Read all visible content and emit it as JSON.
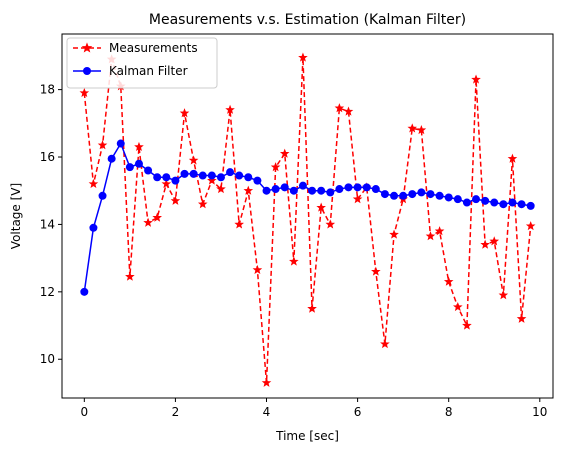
{
  "chart_data": {
    "type": "line",
    "title": "Measurements v.s. Estimation (Kalman Filter)",
    "xlabel": "Time [sec]",
    "ylabel": "Voltage [V]",
    "xlim": [
      -0.49,
      10.29
    ],
    "ylim": [
      8.85,
      19.65
    ],
    "xticks": [
      0,
      2,
      4,
      6,
      8,
      10
    ],
    "yticks": [
      10,
      12,
      14,
      16,
      18
    ],
    "xtick_labels": [
      "0",
      "2",
      "4",
      "6",
      "8",
      "10"
    ],
    "ytick_labels": [
      "10",
      "12",
      "14",
      "16",
      "18"
    ],
    "grid": false,
    "legend_position": "upper-left",
    "x": [
      0,
      0.2,
      0.4,
      0.6,
      0.8,
      1.0,
      1.2,
      1.4,
      1.6,
      1.8,
      2.0,
      2.2,
      2.4,
      2.6,
      2.8,
      3.0,
      3.2,
      3.4,
      3.6,
      3.8,
      4.0,
      4.2,
      4.4,
      4.6,
      4.8,
      5.0,
      5.2,
      5.4,
      5.6,
      5.8,
      6.0,
      6.2,
      6.4,
      6.6,
      6.8,
      7.0,
      7.2,
      7.4,
      7.6,
      7.8,
      8.0,
      8.2,
      8.4,
      8.6,
      8.8,
      9.0,
      9.2,
      9.4,
      9.6,
      9.8
    ],
    "series": [
      {
        "name": "Measurements",
        "color": "#ff0000",
        "linestyle": "dashed",
        "marker": "star",
        "values": [
          17.9,
          15.2,
          16.35,
          18.9,
          18.1,
          12.45,
          16.3,
          14.05,
          14.2,
          15.2,
          14.7,
          17.3,
          15.9,
          14.6,
          15.3,
          15.05,
          17.4,
          14.0,
          15.0,
          12.65,
          9.3,
          15.7,
          16.1,
          12.9,
          18.95,
          11.5,
          14.5,
          14.0,
          17.45,
          17.35,
          14.75,
          15.1,
          12.6,
          10.45,
          13.7,
          14.75,
          16.85,
          16.8,
          13.65,
          13.8,
          12.3,
          11.55,
          11.0,
          18.3,
          13.4,
          13.5,
          11.9,
          15.95,
          11.2,
          13.95
        ]
      },
      {
        "name": "Kalman Filter",
        "color": "#0000ff",
        "linestyle": "solid",
        "marker": "circle",
        "values": [
          12.0,
          13.9,
          14.85,
          15.95,
          16.4,
          15.7,
          15.8,
          15.6,
          15.4,
          15.4,
          15.3,
          15.5,
          15.5,
          15.45,
          15.45,
          15.4,
          15.55,
          15.45,
          15.4,
          15.3,
          15.0,
          15.05,
          15.1,
          15.0,
          15.15,
          15.0,
          15.0,
          14.95,
          15.05,
          15.1,
          15.1,
          15.1,
          15.05,
          14.9,
          14.85,
          14.85,
          14.9,
          14.95,
          14.9,
          14.85,
          14.8,
          14.75,
          14.65,
          14.75,
          14.7,
          14.65,
          14.6,
          14.65,
          14.6,
          14.55
        ]
      }
    ]
  }
}
